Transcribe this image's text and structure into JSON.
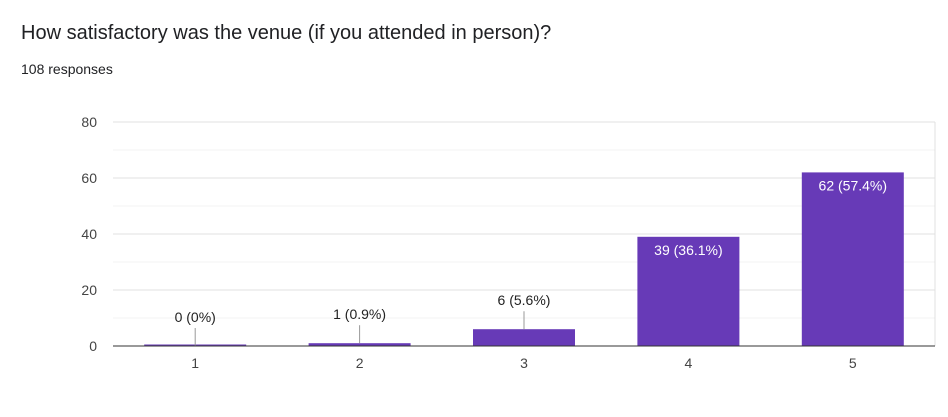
{
  "question": {
    "title": "How satisfactory was the venue (if you attended in person)?",
    "responses": "108 responses"
  },
  "chart_data": {
    "type": "bar",
    "categories": [
      "1",
      "2",
      "3",
      "4",
      "5"
    ],
    "values": [
      0,
      1,
      6,
      39,
      62
    ],
    "data_labels": [
      "0 (0%)",
      "1 (0.9%)",
      "6 (5.6%)",
      "39 (36.1%)",
      "62 (57.4%)"
    ],
    "ylim": [
      0,
      80
    ],
    "yticks": [
      "0",
      "20",
      "40",
      "60",
      "80"
    ],
    "grid": true,
    "bar_color": "#673ab7",
    "xlabel": "",
    "ylabel": ""
  }
}
